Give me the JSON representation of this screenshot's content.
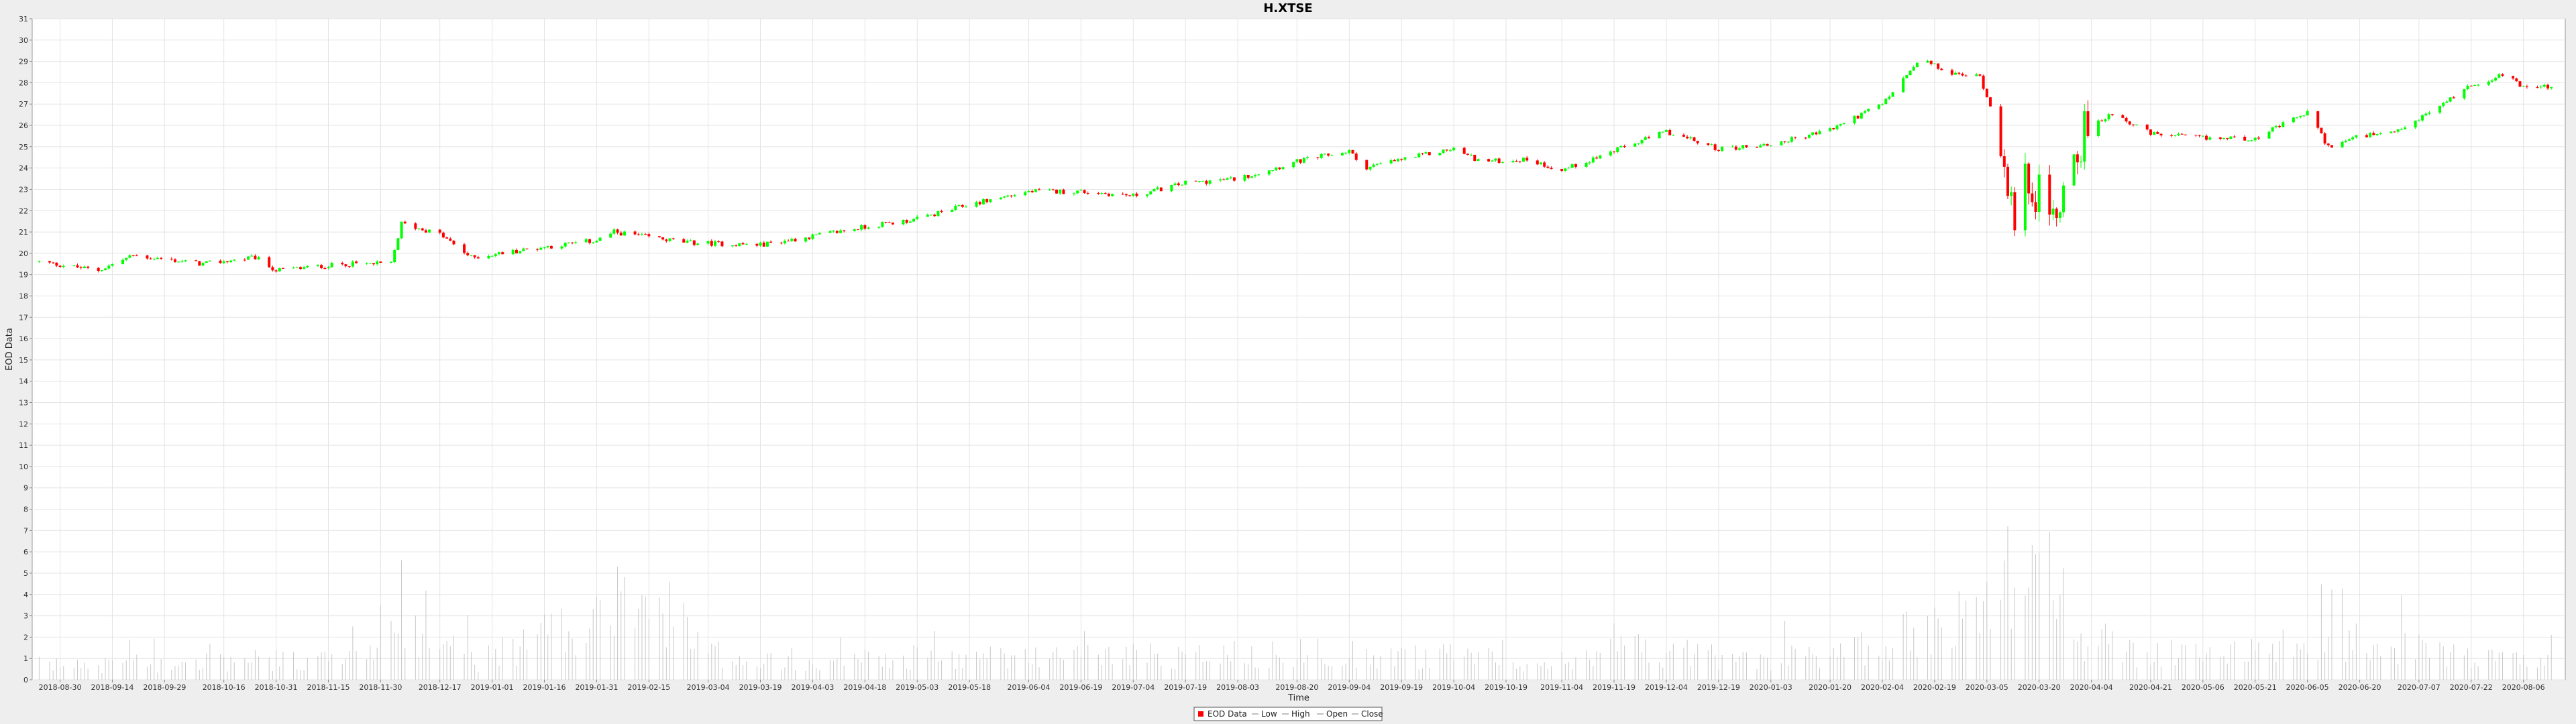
{
  "chart_data": {
    "type": "candlestick",
    "title": "H.XTSE",
    "xlabel": "Time",
    "ylabel": "EOD Data",
    "ylim": [
      0,
      31
    ],
    "y_ticks": [
      0,
      1,
      2,
      3,
      4,
      5,
      6,
      7,
      8,
      9,
      10,
      11,
      12,
      13,
      14,
      15,
      16,
      17,
      18,
      19,
      20,
      21,
      22,
      23,
      24,
      25,
      26,
      27,
      28,
      29,
      30,
      31
    ],
    "x_tick_labels": [
      "2018-08-30",
      "2018-09-14",
      "2018-09-29",
      "2018-10-16",
      "2018-10-31",
      "2018-11-15",
      "2018-11-30",
      "2018-12-17",
      "2019-01-01",
      "2019-01-16",
      "2019-01-31",
      "2019-02-15",
      "2019-03-04",
      "2019-03-19",
      "2019-04-03",
      "2019-04-18",
      "2019-05-03",
      "2019-05-18",
      "2019-06-04",
      "2019-06-19",
      "2019-07-04",
      "2019-07-19",
      "2019-08-03",
      "2019-08-20",
      "2019-09-04",
      "2019-09-19",
      "2019-10-04",
      "2019-10-19",
      "2019-11-04",
      "2019-11-19",
      "2019-12-04",
      "2019-12-19",
      "2020-01-03",
      "2020-01-20",
      "2020-02-04",
      "2020-02-19",
      "2020-03-05",
      "2020-03-20",
      "2020-04-04",
      "2020-04-21",
      "2020-05-06",
      "2020-05-21",
      "2020-06-05",
      "2020-06-20",
      "2020-07-07",
      "2020-07-22",
      "2020-08-06"
    ],
    "grid": true,
    "legend_position": "bottom",
    "legend": [
      "EOD Data",
      "Low",
      "High",
      "Open",
      "Close"
    ],
    "series_colors": {
      "up": "#00ff00",
      "down": "#ff0000",
      "volume": "#c8c8c8"
    },
    "close_anchors": [
      [
        "2018-08-24",
        19.6
      ],
      [
        "2018-09-10",
        19.2
      ],
      [
        "2018-09-20",
        19.9
      ],
      [
        "2018-10-10",
        19.5
      ],
      [
        "2018-10-25",
        19.8
      ],
      [
        "2018-10-31",
        19.2
      ],
      [
        "2018-11-20",
        19.5
      ],
      [
        "2018-12-03",
        19.5
      ],
      [
        "2018-12-06",
        21.4
      ],
      [
        "2018-12-17",
        20.9
      ],
      [
        "2018-12-26",
        19.8
      ],
      [
        "2019-01-16",
        20.3
      ],
      [
        "2019-01-31",
        20.6
      ],
      [
        "2019-02-05",
        21.0
      ],
      [
        "2019-02-26",
        20.5
      ],
      [
        "2019-03-19",
        20.4
      ],
      [
        "2019-04-03",
        20.8
      ],
      [
        "2019-04-20",
        21.3
      ],
      [
        "2019-05-03",
        21.6
      ],
      [
        "2019-05-18",
        22.3
      ],
      [
        "2019-06-04",
        22.9
      ],
      [
        "2019-06-19",
        22.9
      ],
      [
        "2019-07-04",
        22.7
      ],
      [
        "2019-07-19",
        23.3
      ],
      [
        "2019-08-03",
        23.5
      ],
      [
        "2019-08-20",
        24.3
      ],
      [
        "2019-09-04",
        24.8
      ],
      [
        "2019-09-08",
        24.0
      ],
      [
        "2019-09-19",
        24.4
      ],
      [
        "2019-10-04",
        24.9
      ],
      [
        "2019-10-12",
        24.3
      ],
      [
        "2019-10-25",
        24.4
      ],
      [
        "2019-11-04",
        23.9
      ],
      [
        "2019-11-19",
        24.8
      ],
      [
        "2019-12-04",
        25.7
      ],
      [
        "2019-12-19",
        24.9
      ],
      [
        "2020-01-03",
        25.1
      ],
      [
        "2020-01-20",
        25.8
      ],
      [
        "2020-02-04",
        27.0
      ],
      [
        "2020-02-15",
        29.1
      ],
      [
        "2020-02-24",
        28.4
      ],
      [
        "2020-03-03",
        28.3
      ],
      [
        "2020-03-10",
        25.0
      ],
      [
        "2020-03-13",
        20.8
      ],
      [
        "2020-03-17",
        23.8
      ],
      [
        "2020-03-23",
        21.3
      ],
      [
        "2020-04-01",
        25.5
      ],
      [
        "2020-04-10",
        26.6
      ],
      [
        "2020-04-21",
        25.6
      ],
      [
        "2020-05-06",
        25.4
      ],
      [
        "2020-05-21",
        25.4
      ],
      [
        "2020-06-05",
        26.6
      ],
      [
        "2020-06-11",
        25.0
      ],
      [
        "2020-06-20",
        25.5
      ],
      [
        "2020-06-30",
        25.6
      ],
      [
        "2020-07-10",
        26.6
      ],
      [
        "2020-07-22",
        27.9
      ],
      [
        "2020-08-01",
        28.4
      ],
      [
        "2020-08-06",
        27.8
      ],
      [
        "2020-08-14",
        27.8
      ]
    ],
    "volume_anchors": [
      [
        "2018-08-24",
        0.8
      ],
      [
        "2018-11-28",
        1.2
      ],
      [
        "2018-12-03",
        5.5
      ],
      [
        "2018-12-10",
        3.0
      ],
      [
        "2018-12-28",
        1.0
      ],
      [
        "2019-02-15",
        4.7
      ],
      [
        "2019-03-04",
        1.5
      ],
      [
        "2019-03-19",
        1.2
      ],
      [
        "2019-05-15",
        1.2
      ],
      [
        "2019-08-20",
        1.5
      ],
      [
        "2019-11-10",
        1.0
      ],
      [
        "2019-11-19",
        2.0
      ],
      [
        "2019-12-20",
        1.2
      ],
      [
        "2020-01-20",
        1.2
      ],
      [
        "2020-02-19",
        2.8
      ],
      [
        "2020-02-28",
        3.5
      ],
      [
        "2020-03-10",
        6.5
      ],
      [
        "2020-03-20",
        5.0
      ],
      [
        "2020-04-04",
        1.5
      ],
      [
        "2020-04-21",
        1.4
      ],
      [
        "2020-06-20",
        2.0
      ],
      [
        "2020-07-22",
        1.2
      ],
      [
        "2020-08-14",
        0.9
      ]
    ]
  }
}
